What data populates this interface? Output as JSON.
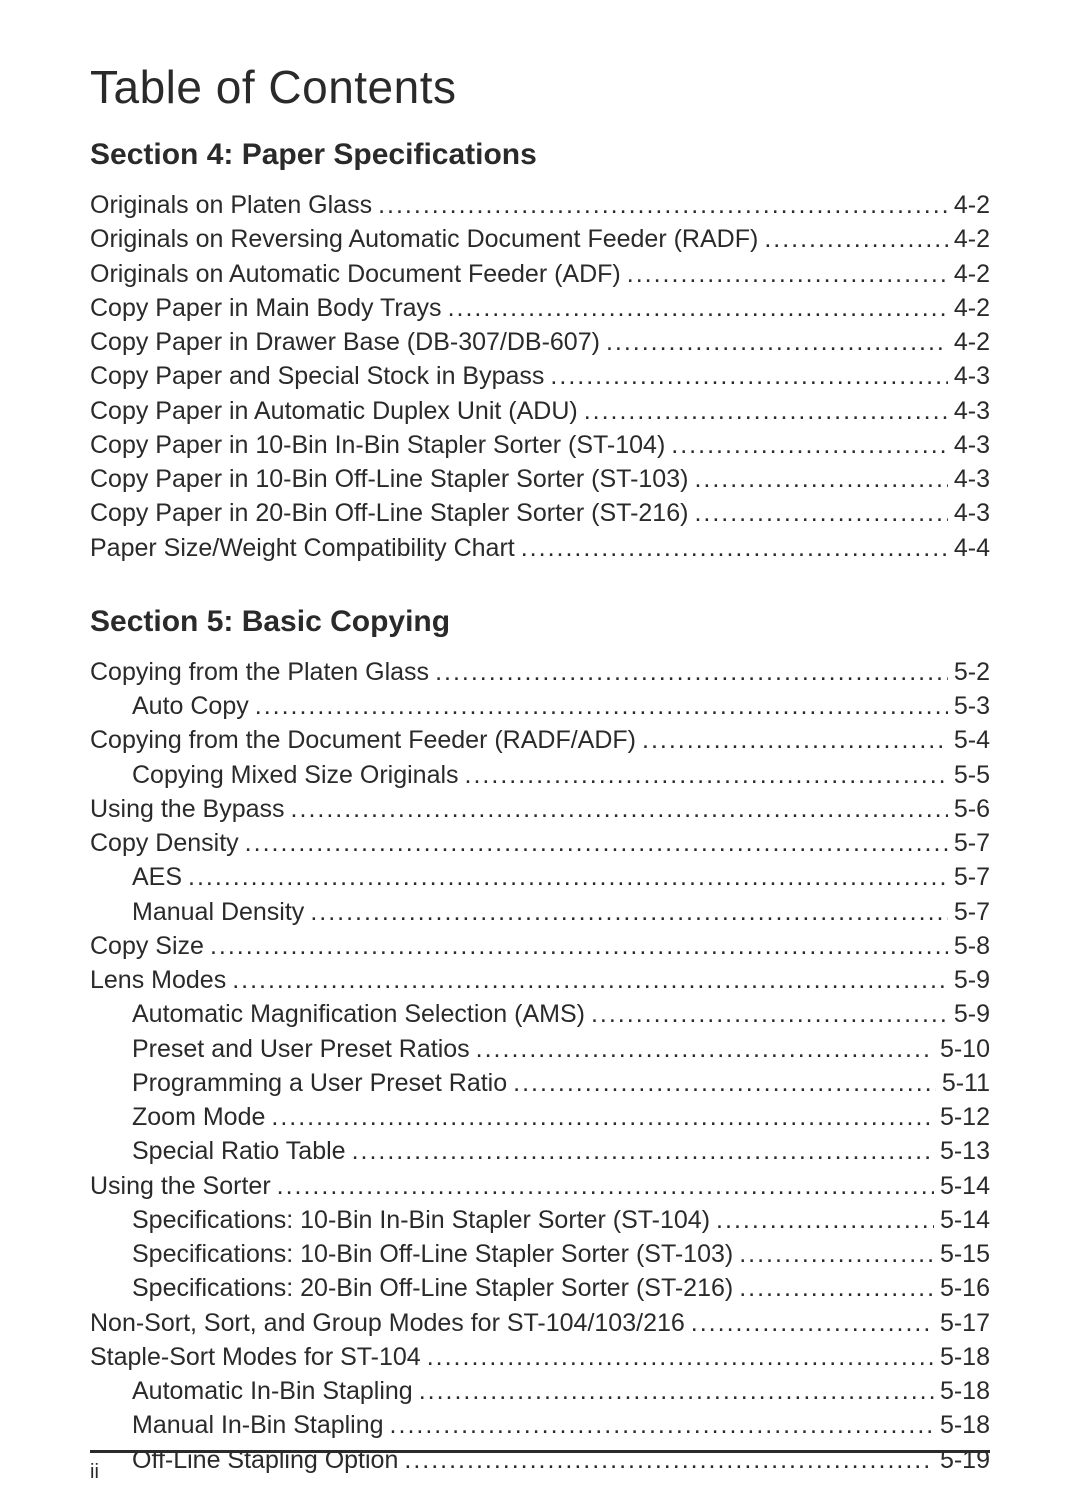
{
  "title": "Table of Contents",
  "page_number_footer": "ii",
  "typography": {
    "title_fontsize_pt": 34,
    "section_fontsize_pt": 22,
    "entry_fontsize_pt": 18,
    "footer_fontsize_pt": 15,
    "text_color": "#2a2a2a",
    "background_color": "#ffffff",
    "font_family": "Arial"
  },
  "sections": [
    {
      "heading": "Section 4: Paper Specifications",
      "entries": [
        {
          "label": "Originals on Platen Glass",
          "page": "4-2",
          "level": 0
        },
        {
          "label": "Originals on Reversing Automatic Document Feeder (RADF)",
          "page": "4-2",
          "level": 0
        },
        {
          "label": "Originals on Automatic Document Feeder (ADF)",
          "page": "4-2",
          "level": 0
        },
        {
          "label": "Copy Paper in Main Body Trays",
          "page": "4-2",
          "level": 0
        },
        {
          "label": "Copy Paper in Drawer Base (DB-307/DB-607)",
          "page": "4-2",
          "level": 0
        },
        {
          "label": "Copy Paper and Special Stock in Bypass",
          "page": "4-3",
          "level": 0
        },
        {
          "label": "Copy Paper in Automatic Duplex Unit (ADU)",
          "page": "4-3",
          "level": 0
        },
        {
          "label": "Copy Paper in 10-Bin In-Bin Stapler Sorter (ST-104)",
          "page": "4-3",
          "level": 0
        },
        {
          "label": "Copy Paper in 10-Bin Off-Line Stapler Sorter (ST-103)",
          "page": "4-3",
          "level": 0
        },
        {
          "label": "Copy Paper in 20-Bin Off-Line Stapler Sorter (ST-216)",
          "page": "4-3",
          "level": 0
        },
        {
          "label": "Paper Size/Weight Compatibility Chart",
          "page": "4-4",
          "level": 0
        }
      ]
    },
    {
      "heading": "Section 5: Basic Copying",
      "entries": [
        {
          "label": "Copying from the Platen Glass",
          "page": "5-2",
          "level": 0
        },
        {
          "label": "Auto Copy",
          "page": "5-3",
          "level": 1
        },
        {
          "label": "Copying from the Document Feeder (RADF/ADF)",
          "page": "5-4",
          "level": 0
        },
        {
          "label": "Copying Mixed Size Originals",
          "page": "5-5",
          "level": 1
        },
        {
          "label": "Using the Bypass",
          "page": "5-6",
          "level": 0
        },
        {
          "label": "Copy Density",
          "page": "5-7",
          "level": 0
        },
        {
          "label": "AES",
          "page": "5-7",
          "level": 1
        },
        {
          "label": "Manual Density",
          "page": "5-7",
          "level": 1
        },
        {
          "label": "Copy Size",
          "page": "5-8",
          "level": 0
        },
        {
          "label": "Lens Modes",
          "page": "5-9",
          "level": 0
        },
        {
          "label": "Automatic Magnification Selection (AMS)",
          "page": "5-9",
          "level": 1
        },
        {
          "label": "Preset and User Preset Ratios",
          "page": "5-10",
          "level": 1
        },
        {
          "label": "Programming a User Preset Ratio",
          "page": "5-11",
          "level": 1
        },
        {
          "label": "Zoom Mode",
          "page": "5-12",
          "level": 1
        },
        {
          "label": "Special Ratio Table",
          "page": "5-13",
          "level": 1
        },
        {
          "label": "Using the Sorter",
          "page": "5-14",
          "level": 0
        },
        {
          "label": "Specifications: 10-Bin In-Bin Stapler Sorter (ST-104)",
          "page": "5-14",
          "level": 1
        },
        {
          "label": "Specifications: 10-Bin Off-Line Stapler Sorter (ST-103)",
          "page": "5-15",
          "level": 1
        },
        {
          "label": "Specifications: 20-Bin Off-Line Stapler Sorter (ST-216)",
          "page": "5-16",
          "level": 1
        },
        {
          "label": "Non-Sort, Sort, and Group Modes for ST-104/103/216",
          "page": "5-17",
          "level": 0
        },
        {
          "label": "Staple-Sort Modes for ST-104",
          "page": "5-18",
          "level": 0
        },
        {
          "label": "Automatic In-Bin Stapling",
          "page": "5-18",
          "level": 1
        },
        {
          "label": "Manual In-Bin Stapling",
          "page": "5-18",
          "level": 1
        },
        {
          "label": "Off-Line Stapling Option",
          "page": "5-19",
          "level": 1
        }
      ]
    }
  ]
}
